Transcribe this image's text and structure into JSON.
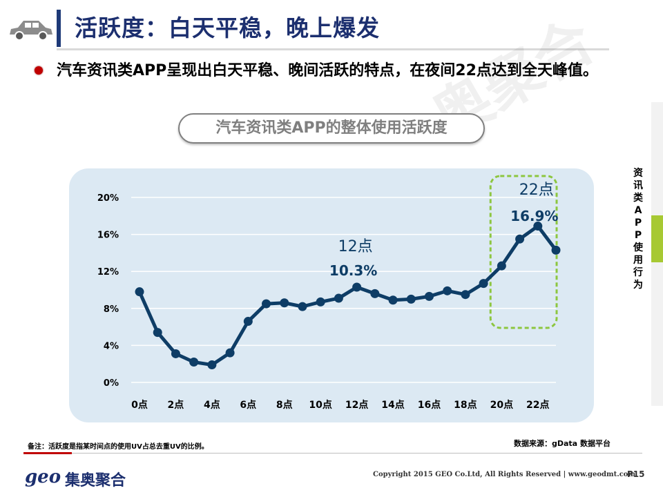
{
  "header": {
    "title": "活跃度：白天平稳，晚上爆发"
  },
  "bullet": {
    "text": "汽车资讯类APP呈现出白天平稳、晚间活跃的特点，在夜间22点达到全天峰值。"
  },
  "subtitle": "汽车资讯类APP的整体使用活跃度",
  "watermark": "奥聚合",
  "side_label": "资讯类APP使用行为",
  "footnote": "备注：活跃度是指某时间点的使用UV占总去重UV的比例。",
  "source": "数据来源：gData  数据平台",
  "footer": {
    "logo_geo": "geo",
    "logo_cn": "集奥聚合",
    "copyright": "Copyright 2015 GEO Co.Ltd, All Rights Reserved  |  www.geodmt.com",
    "page": "P15"
  },
  "colors": {
    "line": "#0e3d66",
    "highlight_box": "#8dc63f",
    "chart_bg": "#dce9f3",
    "title": "#1c2f6f"
  },
  "chart_data": {
    "type": "line",
    "x": [
      0,
      1,
      2,
      3,
      4,
      5,
      6,
      7,
      8,
      9,
      10,
      11,
      12,
      13,
      14,
      15,
      16,
      17,
      18,
      19,
      20,
      21,
      22,
      23
    ],
    "x_tick_labels": [
      "0点",
      "2点",
      "4点",
      "6点",
      "8点",
      "10点",
      "12点",
      "14点",
      "16点",
      "18点",
      "20点",
      "22点"
    ],
    "x_tick_values": [
      0,
      2,
      4,
      6,
      8,
      10,
      12,
      14,
      16,
      18,
      20,
      22
    ],
    "series": [
      {
        "values": [
          9.8,
          5.4,
          3.1,
          2.2,
          1.9,
          3.2,
          6.6,
          8.5,
          8.6,
          8.2,
          8.7,
          9.1,
          10.3,
          9.6,
          8.9,
          9.0,
          9.3,
          9.9,
          9.5,
          10.7,
          12.6,
          15.5,
          16.9,
          14.3
        ]
      }
    ],
    "y_ticks": [
      "0%",
      "4%",
      "8%",
      "12%",
      "16%",
      "20%"
    ],
    "y_tick_values": [
      0,
      4,
      8,
      12,
      16,
      20
    ],
    "ylim": [
      0,
      20
    ],
    "grid": true,
    "annotations": [
      {
        "x": 12,
        "label": "12点",
        "value": "10.3%"
      },
      {
        "x": 22,
        "label": "22点",
        "value": "16.9%"
      }
    ],
    "highlight_range": [
      19.5,
      23
    ]
  }
}
